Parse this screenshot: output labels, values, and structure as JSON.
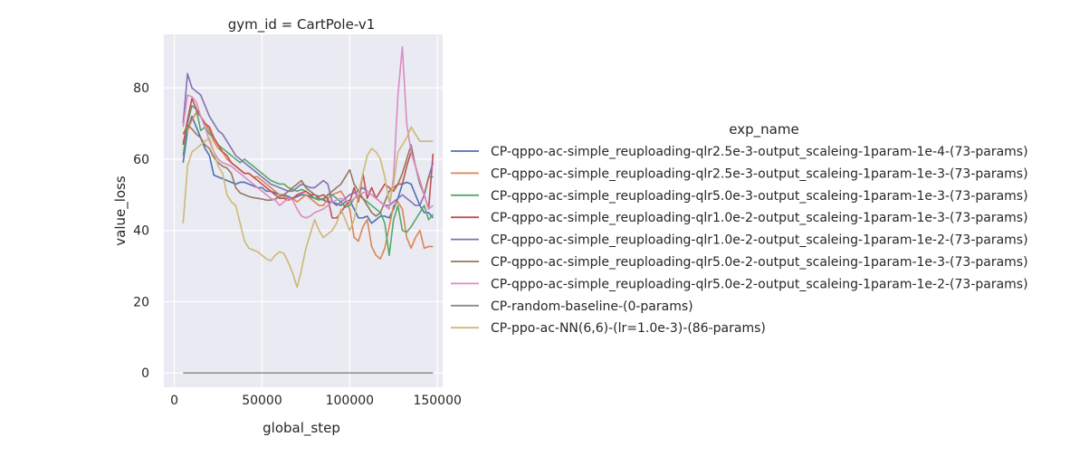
{
  "chart_data": {
    "type": "line",
    "title": "gym_id = CartPole-v1",
    "xlabel": "global_step",
    "ylabel": "value_loss",
    "xlim": [
      -6000,
      153000
    ],
    "ylim": [
      -4,
      95
    ],
    "xticks": [
      0,
      50000,
      100000,
      150000
    ],
    "yticks": [
      0,
      20,
      40,
      60,
      80
    ],
    "grid": true,
    "legend": {
      "title": "exp_name",
      "placement": "right"
    },
    "series": [
      {
        "name": "CP-qppo-ac-simple_reuploading-qlr2.5e-3-output_scaleing-1param-1e-4-(73-params)",
        "color": "#4c72b0",
        "x": [
          5000,
          7500,
          10000,
          12500,
          15000,
          17500,
          20000,
          22500,
          25000,
          27500,
          30000,
          32500,
          35000,
          37500,
          40000,
          42500,
          45000,
          47500,
          50000,
          52500,
          55000,
          57500,
          60000,
          62500,
          65000,
          67500,
          70000,
          72500,
          75000,
          77500,
          80000,
          82500,
          85000,
          87500,
          90000,
          92500,
          95000,
          97500,
          100000,
          102500,
          105000,
          107500,
          110000,
          112500,
          115000,
          117500,
          120000,
          122500,
          125000,
          127500,
          130000,
          132500,
          135000,
          137500,
          140000,
          142500,
          145000,
          147500
        ],
        "y": [
          59,
          68,
          72,
          69,
          66,
          63,
          61,
          55.5,
          55,
          54.5,
          54,
          53.5,
          53,
          53.5,
          53.5,
          53,
          52.5,
          52,
          52,
          51,
          51,
          50.5,
          50,
          50,
          49.5,
          49,
          49.5,
          50,
          50,
          49.5,
          49,
          49,
          48.5,
          48,
          48,
          47.5,
          47,
          48,
          48.5,
          46,
          43.5,
          43.5,
          44,
          42,
          43,
          44,
          44,
          43.5,
          46,
          49,
          53,
          53.5,
          53,
          50,
          47,
          45,
          45,
          43.5
        ]
      },
      {
        "name": "CP-qppo-ac-simple_reuploading-qlr2.5e-3-output_scaleing-1param-1e-3-(73-params)",
        "color": "#dd8452",
        "x": [
          5000,
          7500,
          10000,
          12500,
          15000,
          17500,
          20000,
          22500,
          25000,
          27500,
          30000,
          32500,
          35000,
          37500,
          40000,
          42500,
          45000,
          47500,
          50000,
          52500,
          55000,
          57500,
          60000,
          62500,
          65000,
          67500,
          70000,
          72500,
          75000,
          77500,
          80000,
          82500,
          85000,
          87500,
          90000,
          92500,
          95000,
          97500,
          100000,
          102500,
          105000,
          107500,
          110000,
          112500,
          115000,
          117500,
          120000,
          122500,
          125000,
          127500,
          130000,
          132500,
          135000,
          137500,
          140000,
          142500,
          145000,
          147500
        ],
        "y": [
          65,
          68,
          71,
          73,
          72,
          70,
          68,
          65,
          63,
          62,
          60,
          59,
          58,
          57,
          56,
          56,
          55,
          55,
          54,
          53,
          52,
          51,
          50,
          49.5,
          49,
          49,
          48,
          49,
          50,
          49,
          48,
          47,
          47,
          49,
          50,
          50.5,
          51,
          49,
          46,
          38,
          37,
          41,
          43,
          35.5,
          33,
          32,
          35,
          41,
          47,
          48,
          46,
          38,
          35,
          38,
          40,
          35,
          35.5,
          35.5
        ]
      },
      {
        "name": "CP-qppo-ac-simple_reuploading-qlr5.0e-3-output_scaleing-1param-1e-3-(73-params)",
        "color": "#55a868",
        "x": [
          5000,
          7500,
          10000,
          12500,
          15000,
          17500,
          20000,
          22500,
          25000,
          27500,
          30000,
          32500,
          35000,
          37500,
          40000,
          42500,
          45000,
          47500,
          50000,
          52500,
          55000,
          57500,
          60000,
          62500,
          65000,
          67500,
          70000,
          72500,
          75000,
          77500,
          80000,
          82500,
          85000,
          87500,
          90000,
          92500,
          95000,
          97500,
          100000,
          102500,
          105000,
          107500,
          110000,
          112500,
          115000,
          117500,
          120000,
          122500,
          125000,
          127500,
          130000,
          132500,
          135000,
          137500,
          140000,
          142500,
          145000,
          147500
        ],
        "y": [
          61,
          70,
          75,
          74,
          68,
          69,
          67,
          66,
          64,
          63,
          62,
          61,
          60,
          59,
          60,
          59,
          58,
          57,
          56,
          55,
          54,
          53.5,
          53,
          53,
          52,
          51.5,
          51,
          51.5,
          51,
          50,
          49,
          48.5,
          49,
          50,
          50,
          49,
          48,
          46.5,
          47,
          49,
          50,
          49,
          48,
          47,
          46,
          45,
          42,
          33,
          43,
          47,
          40,
          39.5,
          41,
          43,
          45,
          47,
          43,
          44.5
        ]
      },
      {
        "name": "CP-qppo-ac-simple_reuploading-qlr1.0e-2-output_scaleing-1param-1e-3-(73-params)",
        "color": "#c44e52",
        "x": [
          5000,
          7500,
          10000,
          12500,
          15000,
          17500,
          20000,
          22500,
          25000,
          27500,
          30000,
          32500,
          35000,
          37500,
          40000,
          42500,
          45000,
          47500,
          50000,
          52500,
          55000,
          57500,
          60000,
          62500,
          65000,
          67500,
          70000,
          72500,
          75000,
          77500,
          80000,
          82500,
          85000,
          87500,
          90000,
          92500,
          95000,
          97500,
          100000,
          102500,
          105000,
          107500,
          110000,
          112500,
          115000,
          117500,
          120000,
          122500,
          125000,
          127500,
          130000,
          132500,
          135000,
          137500,
          140000,
          142500,
          145000,
          147500
        ],
        "y": [
          64,
          71,
          77,
          74,
          72,
          70,
          69,
          66,
          64,
          62,
          61,
          59,
          58,
          57,
          56,
          56,
          55,
          54,
          53,
          52,
          51,
          50,
          49,
          49,
          48.5,
          49,
          50,
          50.5,
          51,
          50,
          50,
          49.5,
          50,
          49,
          43.5,
          43.5,
          45,
          47,
          48,
          52,
          48,
          56,
          49,
          52,
          49,
          51,
          53,
          52,
          51,
          53,
          53,
          58,
          62,
          58,
          54,
          50,
          46,
          61.5
        ]
      },
      {
        "name": "CP-qppo-ac-simple_reuploading-qlr1.0e-2-output_scaleing-1param-1e-2-(73-params)",
        "color": "#8172b3",
        "x": [
          5000,
          7500,
          10000,
          12500,
          15000,
          17500,
          20000,
          22500,
          25000,
          27500,
          30000,
          32500,
          35000,
          37500,
          40000,
          42500,
          45000,
          47500,
          50000,
          52500,
          55000,
          57500,
          60000,
          62500,
          65000,
          67500,
          70000,
          72500,
          75000,
          77500,
          80000,
          82500,
          85000,
          87500,
          90000,
          92500,
          95000,
          97500,
          100000,
          102500,
          105000,
          107500,
          110000,
          112500,
          115000,
          117500,
          120000,
          122500,
          125000,
          127500,
          130000,
          132500,
          135000,
          137500,
          140000,
          142500,
          145000,
          147500
        ],
        "y": [
          70,
          84,
          80,
          79,
          78,
          75,
          72,
          70,
          68,
          67,
          65,
          63,
          61,
          60,
          59,
          58,
          57,
          56,
          55,
          54,
          53,
          52.5,
          52,
          51.5,
          51,
          51,
          52,
          53,
          52.5,
          52,
          52,
          53,
          54,
          53,
          48,
          47,
          48,
          49,
          50,
          50.5,
          51,
          52,
          51,
          50,
          49,
          48,
          47,
          47,
          48,
          49,
          50,
          49,
          48,
          47,
          47,
          50,
          55,
          59
        ]
      },
      {
        "name": "CP-qppo-ac-simple_reuploading-qlr5.0e-2-output_scaleing-1param-1e-3-(73-params)",
        "color": "#937860",
        "x": [
          5000,
          7500,
          10000,
          12500,
          15000,
          17500,
          20000,
          22500,
          25000,
          27500,
          30000,
          32500,
          35000,
          37500,
          40000,
          42500,
          45000,
          47500,
          50000,
          52500,
          55000,
          57500,
          60000,
          62500,
          65000,
          67500,
          70000,
          72500,
          75000,
          77500,
          80000,
          82500,
          85000,
          87500,
          90000,
          92500,
          95000,
          97500,
          100000,
          102500,
          105000,
          107500,
          110000,
          112500,
          115000,
          117500,
          120000,
          122500,
          125000,
          127500,
          130000,
          132500,
          135000,
          137500,
          140000,
          142500,
          145000,
          147500
        ],
        "y": [
          67,
          69.5,
          68.5,
          67,
          66,
          64,
          63,
          60.5,
          59,
          58,
          57.5,
          56,
          52,
          50.5,
          50,
          49.5,
          49.2,
          49,
          48.8,
          48.5,
          48.5,
          48.8,
          49.5,
          50,
          51,
          52,
          53,
          54,
          52,
          51,
          50,
          49,
          48.5,
          50,
          51,
          52,
          53,
          55,
          57,
          53,
          51,
          49,
          47,
          45,
          44,
          45,
          48,
          51,
          52,
          53,
          56,
          60,
          64,
          58,
          53,
          50,
          55,
          55
        ]
      },
      {
        "name": "CP-qppo-ac-simple_reuploading-qlr5.0e-2-output_scaleing-1param-1e-2-(73-params)",
        "color": "#da8bc3",
        "x": [
          5000,
          7500,
          10000,
          12500,
          15000,
          17500,
          20000,
          22500,
          25000,
          27500,
          30000,
          32500,
          35000,
          37500,
          40000,
          42500,
          45000,
          47500,
          50000,
          52500,
          55000,
          57500,
          60000,
          62500,
          65000,
          67500,
          70000,
          72500,
          75000,
          77500,
          80000,
          82500,
          85000,
          87500,
          90000,
          92500,
          95000,
          97500,
          100000,
          102500,
          105000,
          107500,
          110000,
          112500,
          115000,
          117500,
          120000,
          122500,
          125000,
          127500,
          130000,
          132500,
          135000,
          137500,
          140000,
          142500,
          145000,
          147500
        ],
        "y": [
          69,
          78,
          77.5,
          76,
          72,
          69,
          65,
          62,
          60,
          59,
          58.5,
          58,
          57,
          56,
          55,
          54,
          53,
          52,
          51,
          50,
          49,
          48.5,
          47,
          48,
          49,
          48.5,
          46,
          44,
          43.5,
          44,
          45,
          45.5,
          46,
          47,
          48,
          48.5,
          49,
          48.5,
          48,
          49,
          50,
          50.5,
          51,
          50,
          49,
          48,
          47,
          46,
          55,
          78,
          91.5,
          70,
          62,
          58,
          54,
          50,
          46,
          47
        ]
      },
      {
        "name": "CP-random-baseline-(0-params)",
        "color": "#8c8c8c",
        "x": [
          5000,
          147500
        ],
        "y": [
          0,
          0
        ]
      },
      {
        "name": "CP-ppo-ac-NN(6,6)-(lr=1.0e-3)-(86-params)",
        "color": "#ccb974",
        "x": [
          5000,
          7500,
          10000,
          12500,
          15000,
          17500,
          20000,
          22500,
          25000,
          27500,
          30000,
          32500,
          35000,
          37500,
          40000,
          42500,
          45000,
          47500,
          50000,
          52500,
          55000,
          57500,
          60000,
          62500,
          65000,
          67500,
          70000,
          72500,
          75000,
          77500,
          80000,
          82500,
          85000,
          87500,
          90000,
          92500,
          95000,
          97500,
          100000,
          102500,
          105000,
          107500,
          110000,
          112500,
          115000,
          117500,
          120000,
          122500,
          125000,
          127500,
          130000,
          132500,
          135000,
          137500,
          140000,
          142500,
          145000,
          147500
        ],
        "y": [
          42,
          58,
          62,
          63,
          64,
          65,
          66,
          62,
          58,
          56,
          50,
          48,
          47,
          42,
          37,
          35,
          34.5,
          34,
          33,
          32,
          31.5,
          33,
          34,
          33.5,
          31,
          28,
          24,
          29,
          35,
          39,
          43,
          40,
          38,
          39,
          40,
          42,
          46,
          43,
          40,
          43,
          50,
          56,
          61,
          63,
          62,
          60,
          55,
          48,
          53,
          62,
          64,
          66,
          69,
          67,
          65,
          65,
          65,
          65
        ]
      }
    ]
  }
}
